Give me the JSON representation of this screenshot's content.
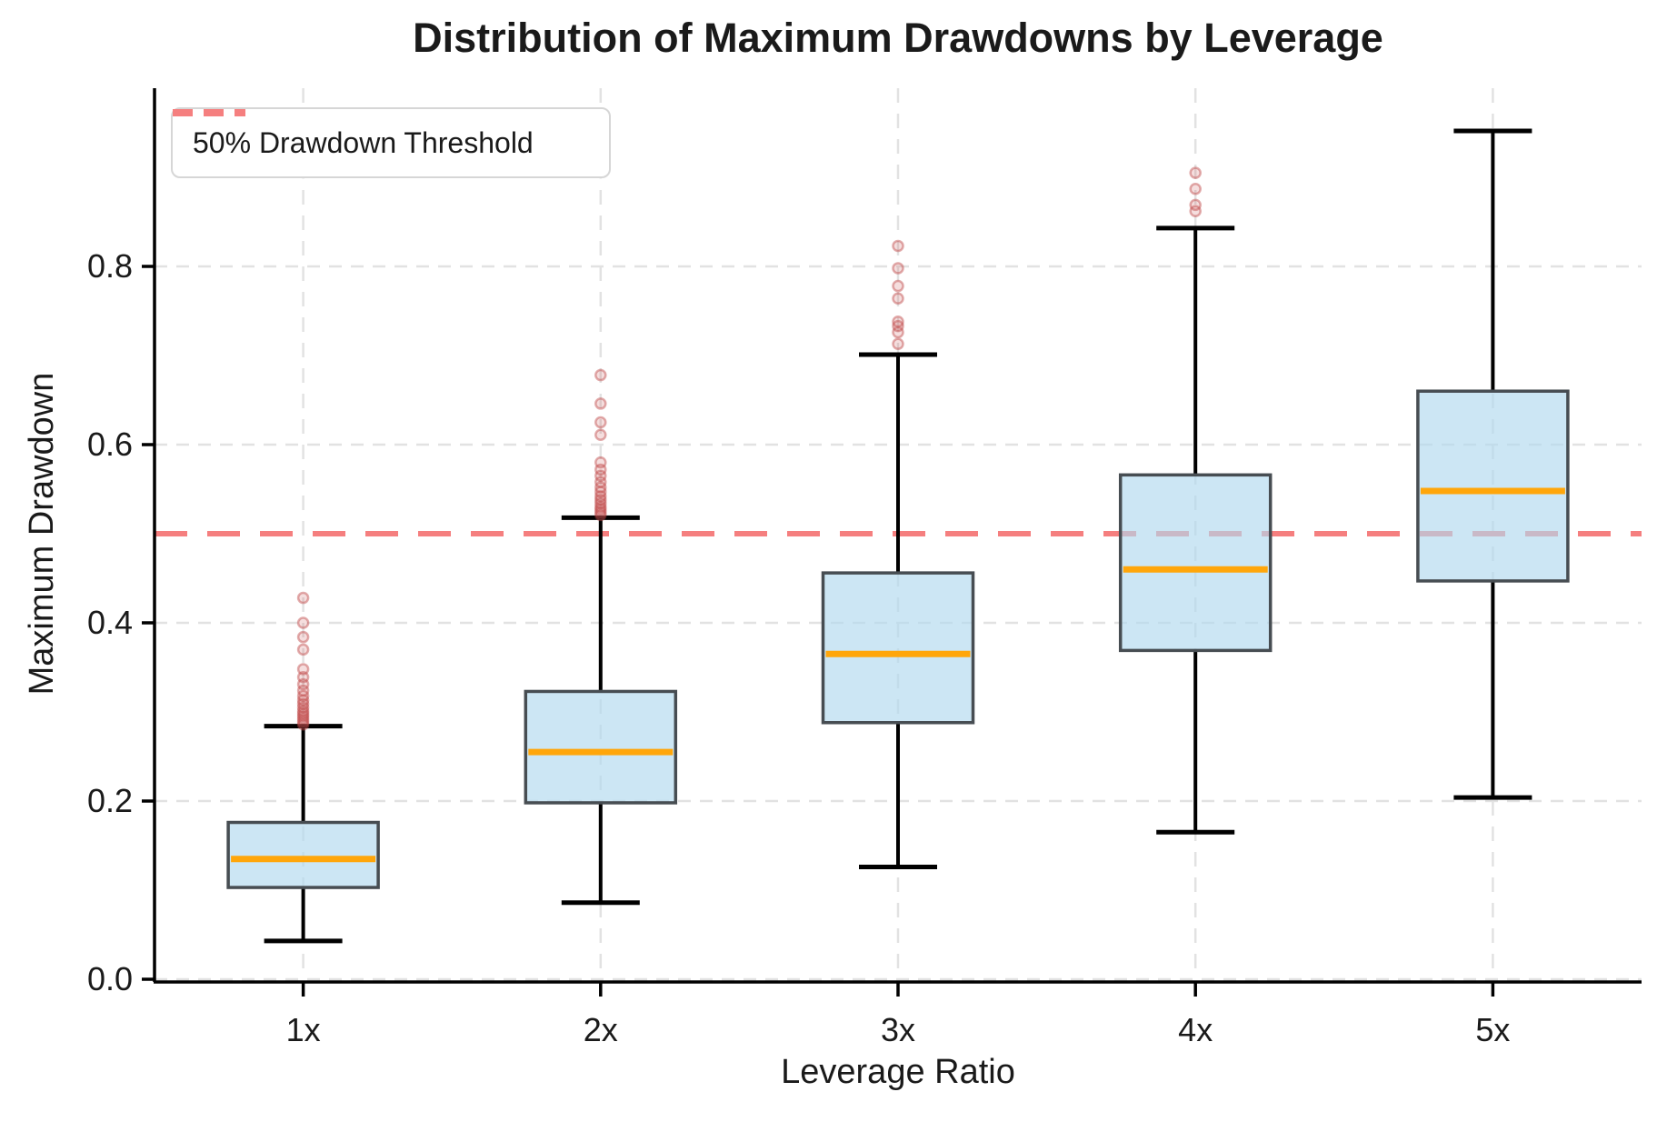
{
  "chart_data": {
    "type": "boxplot",
    "title": "Distribution of Maximum Drawdowns by Leverage",
    "xlabel": "Leverage Ratio",
    "ylabel": "Maximum Drawdown",
    "categories": [
      "1x",
      "2x",
      "3x",
      "4x",
      "5x"
    ],
    "ylim": [
      0.0,
      1.0
    ],
    "y_ticks": [
      0.0,
      0.2,
      0.4,
      0.6,
      0.8
    ],
    "y_tick_labels": [
      "0.0",
      "0.2",
      "0.4",
      "0.6",
      "0.8"
    ],
    "grid": "dashed horizontal gridlines at y ticks and dashed vertical gridlines at each category",
    "legend_position": "upper left",
    "threshold": {
      "value": 0.5,
      "label": "50% Drawdown Threshold",
      "color": "#f57f7f",
      "style": "dashed"
    },
    "boxes": [
      {
        "category": "1x",
        "whisker_low": 0.043,
        "q1": 0.103,
        "median": 0.135,
        "q3": 0.176,
        "whisker_high": 0.284,
        "outliers": [
          0.286,
          0.289,
          0.292,
          0.295,
          0.298,
          0.301,
          0.305,
          0.309,
          0.313,
          0.318,
          0.324,
          0.331,
          0.339,
          0.348,
          0.37,
          0.384,
          0.4,
          0.428
        ]
      },
      {
        "category": "2x",
        "whisker_low": 0.086,
        "q1": 0.198,
        "median": 0.255,
        "q3": 0.323,
        "whisker_high": 0.518,
        "outliers": [
          0.521,
          0.524,
          0.527,
          0.53,
          0.534,
          0.538,
          0.542,
          0.547,
          0.552,
          0.558,
          0.565,
          0.572,
          0.58,
          0.611,
          0.625,
          0.646,
          0.678
        ]
      },
      {
        "category": "3x",
        "whisker_low": 0.126,
        "q1": 0.288,
        "median": 0.365,
        "q3": 0.456,
        "whisker_high": 0.701,
        "outliers": [
          0.713,
          0.726,
          0.733,
          0.738,
          0.764,
          0.778,
          0.798,
          0.823
        ]
      },
      {
        "category": "4x",
        "whisker_low": 0.165,
        "q1": 0.369,
        "median": 0.46,
        "q3": 0.566,
        "whisker_high": 0.843,
        "outliers": [
          0.862,
          0.869,
          0.887,
          0.905
        ]
      },
      {
        "category": "5x",
        "whisker_low": 0.204,
        "q1": 0.447,
        "median": 0.548,
        "q3": 0.66,
        "whisker_high": 0.952,
        "outliers": []
      }
    ],
    "colors": {
      "box_fill": "rgba(176,217,238,0.65)",
      "box_edge": "#474d52",
      "median": "#ffa60a",
      "whisker": "#000000",
      "outlier": "#cd5c5c",
      "gridline": "#e2e2e2",
      "spine": "#000000",
      "threshold": "#f57f7f"
    }
  }
}
